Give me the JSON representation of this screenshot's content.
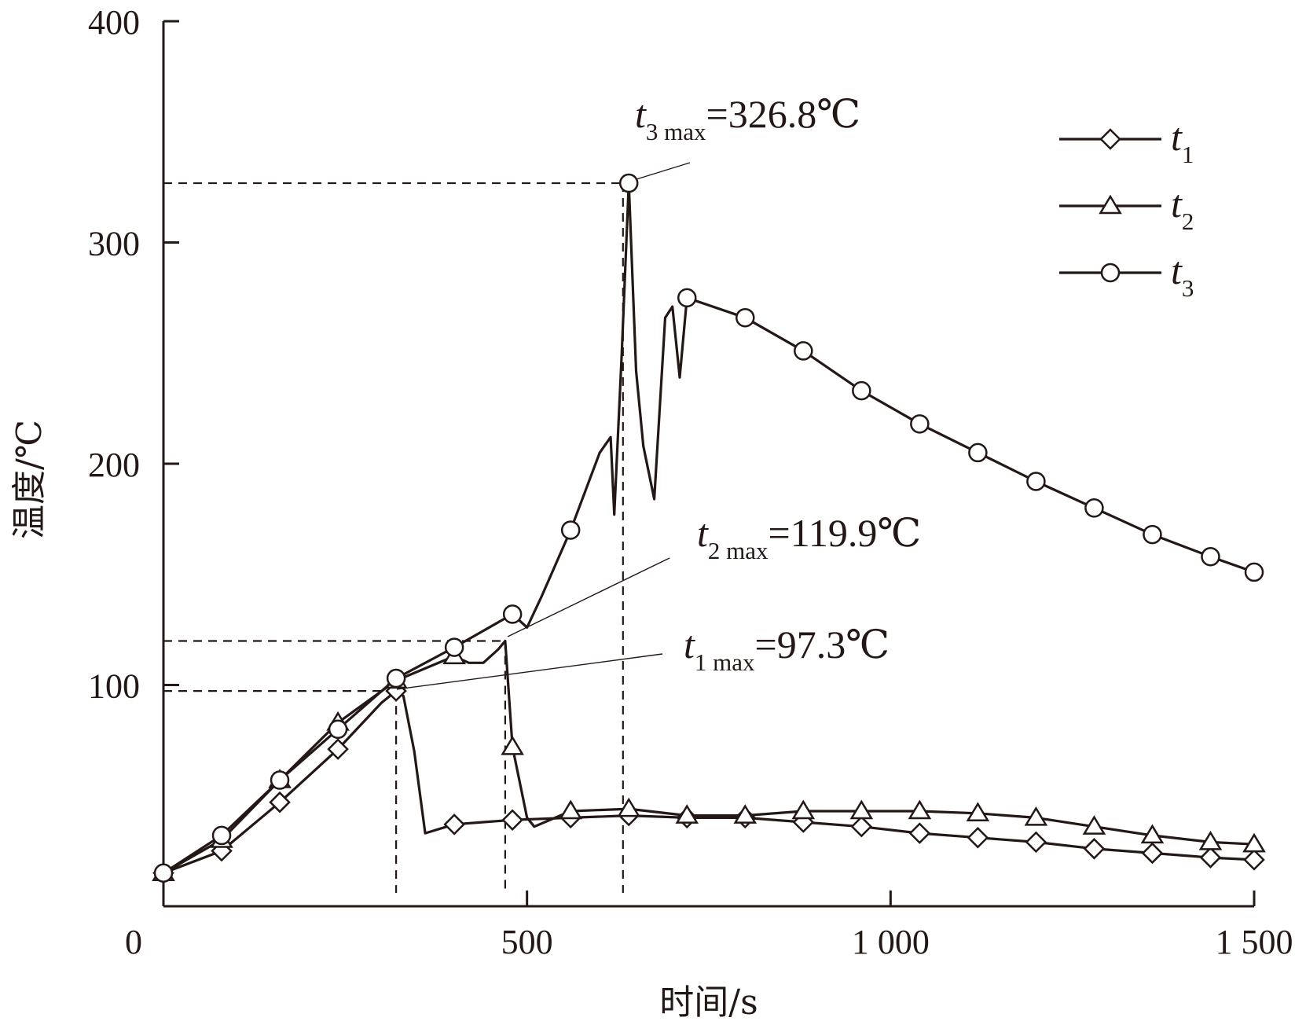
{
  "chart_data": {
    "type": "line",
    "title": "",
    "xlabel": "时间/s",
    "ylabel": "温度/℃",
    "xlim": [
      0,
      1500
    ],
    "ylim": [
      0,
      400
    ],
    "xticks": [
      0,
      500,
      1000,
      1500
    ],
    "xtick_labels": [
      "0",
      "500",
      "1 000",
      "1 500"
    ],
    "yticks": [
      0,
      100,
      200,
      300,
      400
    ],
    "ytick_labels": [
      "",
      "100",
      "200",
      "300",
      "400"
    ],
    "grid": false,
    "legend_position": "top-right",
    "series": [
      {
        "name": "t1",
        "symbol": "t",
        "subscript": "1",
        "marker": "diamond",
        "x": [
          0,
          80,
          160,
          240,
          300,
          320,
          330,
          345,
          360,
          400,
          440,
          480,
          560,
          640,
          720,
          800,
          880,
          960,
          1040,
          1120,
          1200,
          1280,
          1360,
          1440,
          1500
        ],
        "y": [
          15,
          25,
          47,
          71,
          92,
          97.3,
          95,
          70,
          33,
          37,
          38,
          39,
          40,
          41,
          40,
          40,
          38,
          36,
          33,
          31,
          29,
          26,
          24,
          22,
          21
        ]
      },
      {
        "name": "t2",
        "symbol": "t",
        "subscript": "2",
        "marker": "triangle",
        "x": [
          0,
          80,
          160,
          240,
          320,
          400,
          420,
          440,
          460,
          470,
          480,
          500,
          510,
          560,
          640,
          720,
          800,
          880,
          960,
          1040,
          1120,
          1200,
          1280,
          1360,
          1440,
          1500
        ],
        "y": [
          15,
          30,
          57,
          83,
          102,
          113,
          110,
          110,
          116,
          119.9,
          72,
          40,
          36,
          43,
          44,
          41,
          41,
          43,
          43,
          43,
          42,
          40,
          36,
          32,
          29,
          28
        ]
      },
      {
        "name": "t3",
        "symbol": "t",
        "subscript": "3",
        "marker": "circle",
        "x": [
          0,
          80,
          160,
          240,
          320,
          400,
          480,
          500,
          520,
          560,
          600,
          615,
          620,
          630,
          640,
          650,
          660,
          675,
          690,
          700,
          710,
          720,
          800,
          880,
          960,
          1040,
          1120,
          1200,
          1280,
          1360,
          1440,
          1500
        ],
        "y": [
          15,
          32,
          57,
          80,
          103,
          117,
          132,
          126,
          140,
          170,
          205,
          212,
          177,
          248,
          326.8,
          242,
          208,
          184,
          266,
          271,
          239,
          275,
          266,
          251,
          233,
          218,
          205,
          192,
          180,
          168,
          158,
          151
        ]
      }
    ],
    "annotations": [
      {
        "symbol": "t",
        "subscript": "3 max",
        "value_text": "=326.8℃",
        "x": 632,
        "y": 326.8
      },
      {
        "symbol": "t",
        "subscript": "2 max",
        "value_text": "=119.9℃",
        "x": 470,
        "y": 119.9
      },
      {
        "symbol": "t",
        "subscript": "1 max",
        "value_text": "=97.3℃",
        "x": 320,
        "y": 97.3
      }
    ]
  }
}
